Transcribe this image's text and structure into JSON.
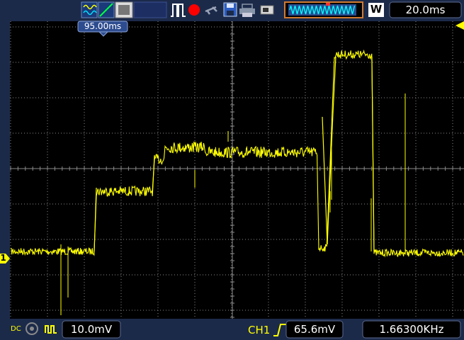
{
  "toolbar": {
    "icons": [
      "waveform-mode-icon",
      "ramp-icon",
      "persistence-icon",
      "blank-panel",
      "pulse-icon",
      "record-icon",
      "probe-icon",
      "save-icon",
      "print-icon",
      "usb-icon"
    ],
    "timebase": "20.0ms",
    "memory_mode_letter": "W"
  },
  "trigger_position_label": "95.00ms",
  "channel1": {
    "marker": "1",
    "coupling": "DC",
    "scale": "10.0mV",
    "trigger_source": "CH1",
    "trigger_level": "65.6mV",
    "frequency": "1.66300KHz"
  },
  "colors": {
    "trace": "#ffff00",
    "background": "#000000",
    "grid": "#8a8a8a",
    "panel": "#1c2a4a",
    "accent_record": "#ff0000"
  }
}
